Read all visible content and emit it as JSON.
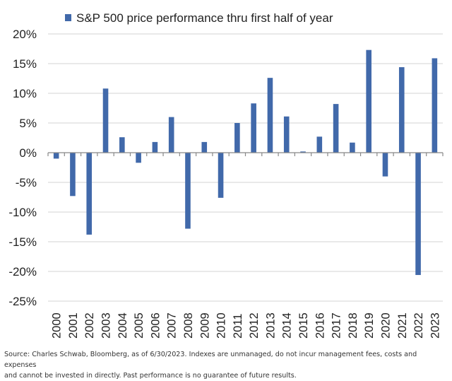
{
  "chart_data": {
    "type": "bar",
    "title": "",
    "legend": {
      "position": "top",
      "entries": [
        "S&P 500 price performance thru first half of year"
      ]
    },
    "series": [
      {
        "name": "S&P 500 price performance thru first half of year",
        "color": "#4169AA",
        "values": [
          -1.0,
          -7.3,
          -13.8,
          10.8,
          2.6,
          -1.7,
          1.8,
          6.0,
          -12.8,
          1.8,
          -7.6,
          5.0,
          8.3,
          12.6,
          6.1,
          0.2,
          2.7,
          8.2,
          1.7,
          17.3,
          -4.0,
          14.4,
          -20.6,
          15.9
        ]
      }
    ],
    "categories": [
      "2000",
      "2001",
      "2002",
      "2003",
      "2004",
      "2005",
      "2006",
      "2007",
      "2008",
      "2009",
      "2010",
      "2011",
      "2012",
      "2013",
      "2014",
      "2015",
      "2016",
      "2017",
      "2018",
      "2019",
      "2020",
      "2021",
      "2022",
      "2023"
    ],
    "xlabel": "",
    "ylabel": "",
    "ylim": [
      -25,
      20
    ],
    "yticks": [
      20,
      15,
      10,
      5,
      0,
      -5,
      -10,
      -15,
      -20,
      -25
    ],
    "ytick_labels": [
      "20%",
      "15%",
      "10%",
      "5%",
      "0%",
      "-5%",
      "-10%",
      "-15%",
      "-20%",
      "-25%"
    ],
    "grid": true
  },
  "source_note": {
    "line1": "Source: Charles Schwab, Bloomberg, as of 6/30/2023. Indexes are unmanaged, do not incur management fees, costs and expenses",
    "line2": "and cannot be invested in directly. Past performance is no guarantee of future results."
  }
}
